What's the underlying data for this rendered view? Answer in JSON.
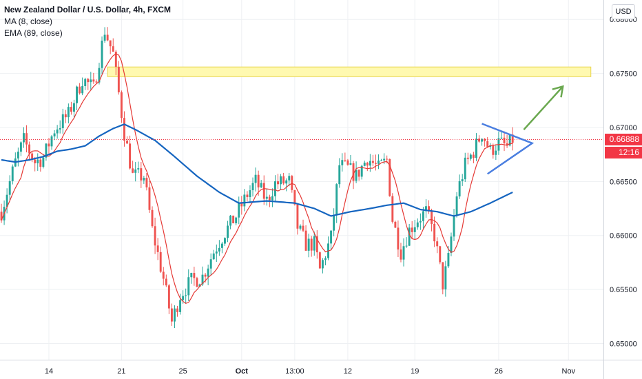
{
  "header": {
    "title": "New Zealand Dollar / U.S. Dollar, 4h, FXCM",
    "indicator_ma": "MA (8, close)",
    "indicator_ema": "EMA (89, close)"
  },
  "currency_button": "USD",
  "last_price_label": "0.66888",
  "countdown_label": "12:16",
  "colors": {
    "up": "#26a69a",
    "down": "#ef5350",
    "ma": "#e53935",
    "ema": "#1565c0",
    "zone_fill": "#fff9b0",
    "zone_border": "#e8d44d",
    "triangle": "#4a7ee0",
    "arrow": "#6aa84f",
    "price_badge": "#f23645",
    "grid": "#eef0f3"
  },
  "chart_data": {
    "type": "candlestick",
    "title": "New Zealand Dollar / U.S. Dollar, 4h, FXCM",
    "y_axis": {
      "ylim": [
        0.6485,
        0.6818
      ],
      "ticks": [
        "0.68000",
        "0.67500",
        "0.67000",
        "0.66500",
        "0.66000",
        "0.65500",
        "0.65000"
      ],
      "tick_values": [
        0.68,
        0.675,
        0.67,
        0.665,
        0.66,
        0.655,
        0.65
      ]
    },
    "x_axis": {
      "ticks": [
        {
          "label": "14",
          "index": 17
        },
        {
          "label": "21",
          "index": 43
        },
        {
          "label": "25",
          "index": 65
        },
        {
          "label": "Oct",
          "index": 86
        },
        {
          "label": "13:00",
          "index": 105
        },
        {
          "label": "12",
          "index": 124
        },
        {
          "label": "19",
          "index": 148
        },
        {
          "label": "26",
          "index": 178
        },
        {
          "label": "Nov",
          "index": 203
        }
      ],
      "visible_bars": 216
    },
    "grid": true,
    "series": [
      {
        "name": "MA (8, close)",
        "type": "line"
      },
      {
        "name": "EMA (89, close)",
        "type": "line"
      }
    ],
    "last_price": 0.66888,
    "resistance_zone": {
      "from": 0.6747,
      "to": 0.6756,
      "start_index": 38,
      "end_index": 211
    },
    "triangle": {
      "apex": [
        0.66854,
        190
      ],
      "top_start": [
        0.67035,
        172
      ],
      "bottom_start": [
        0.6657,
        174
      ]
    },
    "projection_arrow": {
      "from": [
        0.6698,
        187
      ],
      "to": [
        0.6738,
        201
      ]
    },
    "ohlc_anchors": [
      [
        0,
        0.6622
      ],
      [
        5,
        0.6668
      ],
      [
        8,
        0.6688
      ],
      [
        12,
        0.6668
      ],
      [
        15,
        0.6672
      ],
      [
        19,
        0.6698
      ],
      [
        24,
        0.6712
      ],
      [
        29,
        0.6745
      ],
      [
        33,
        0.6736
      ],
      [
        37,
        0.679
      ],
      [
        40,
        0.6768
      ],
      [
        44,
        0.6695
      ],
      [
        47,
        0.6655
      ],
      [
        51,
        0.6655
      ],
      [
        54,
        0.6605
      ],
      [
        58,
        0.656
      ],
      [
        61,
        0.652
      ],
      [
        64,
        0.6545
      ],
      [
        68,
        0.6558
      ],
      [
        72,
        0.6562
      ],
      [
        76,
        0.6585
      ],
      [
        80,
        0.6603
      ],
      [
        84,
        0.6618
      ],
      [
        88,
        0.6638
      ],
      [
        91,
        0.665
      ],
      [
        95,
        0.6632
      ],
      [
        98,
        0.6648
      ],
      [
        103,
        0.665
      ],
      [
        106,
        0.6608
      ],
      [
        109,
        0.6592
      ],
      [
        112,
        0.6592
      ],
      [
        114,
        0.6568
      ],
      [
        118,
        0.6598
      ],
      [
        121,
        0.6665
      ],
      [
        124,
        0.6662
      ],
      [
        127,
        0.6655
      ],
      [
        131,
        0.6672
      ],
      [
        135,
        0.6662
      ],
      [
        138,
        0.667
      ],
      [
        140,
        0.6615
      ],
      [
        143,
        0.6585
      ],
      [
        146,
        0.6605
      ],
      [
        149,
        0.6615
      ],
      [
        152,
        0.6622
      ],
      [
        155,
        0.66
      ],
      [
        158,
        0.6555
      ],
      [
        160,
        0.6578
      ],
      [
        163,
        0.6638
      ],
      [
        166,
        0.6665
      ],
      [
        169,
        0.6678
      ],
      [
        172,
        0.6695
      ],
      [
        175,
        0.6678
      ],
      [
        178,
        0.6686
      ],
      [
        181,
        0.6682
      ],
      [
        183,
        0.6689
      ]
    ],
    "ema_anchors": [
      [
        0,
        0.667
      ],
      [
        5,
        0.6668
      ],
      [
        10,
        0.667
      ],
      [
        15,
        0.6673
      ],
      [
        20,
        0.6678
      ],
      [
        25,
        0.668
      ],
      [
        30,
        0.6683
      ],
      [
        35,
        0.6692
      ],
      [
        40,
        0.6699
      ],
      [
        44,
        0.6703
      ],
      [
        48,
        0.6698
      ],
      [
        55,
        0.6688
      ],
      [
        62,
        0.6673
      ],
      [
        70,
        0.6655
      ],
      [
        78,
        0.664
      ],
      [
        85,
        0.663
      ],
      [
        95,
        0.6632
      ],
      [
        105,
        0.663
      ],
      [
        112,
        0.6625
      ],
      [
        118,
        0.6618
      ],
      [
        125,
        0.6622
      ],
      [
        132,
        0.6625
      ],
      [
        138,
        0.6628
      ],
      [
        144,
        0.663
      ],
      [
        150,
        0.6624
      ],
      [
        156,
        0.6622
      ],
      [
        162,
        0.6618
      ],
      [
        168,
        0.6622
      ],
      [
        175,
        0.663
      ],
      [
        183,
        0.664
      ]
    ]
  }
}
